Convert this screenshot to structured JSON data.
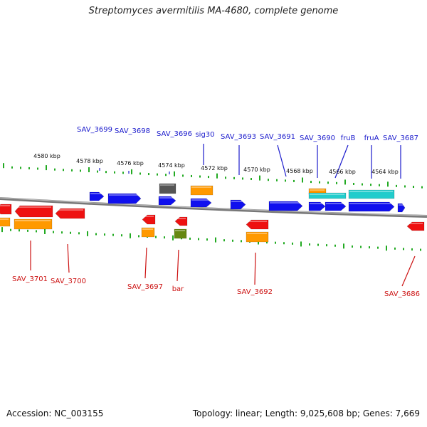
{
  "title": "Streptomyces avermitilis MA-4680, complete genome",
  "footer": {
    "accession": "Accession: NC_003155",
    "topology": "Topology: linear; Length: 9,025,608 bp; Genes: 7,669"
  },
  "colors": {
    "top_label": "#1a1acc",
    "bottom_label": "#cc1111",
    "ruler_tick": "#22aa22",
    "backbone": "#888888",
    "blue": "#1010ee",
    "red": "#ee1111",
    "orange": "#ff9900",
    "cyan": "#22cccc",
    "gray": "#555555",
    "olive": "#668811"
  },
  "top_ruler_labels": [
    "4580 kbp",
    "4578 kbp",
    "4576 kbp",
    "4574 kbp",
    "4572 kbp",
    "4570 kbp",
    "4568 kbp",
    "4566 kbp",
    "4564 kbp"
  ],
  "top_gene_labels": [
    "SAV_3699",
    "SAV_3698",
    "SAV_3696",
    "sig30",
    "SAV_3693",
    "SAV_3691",
    "SAV_3690",
    "fruB",
    "fruA",
    "SAV_3687"
  ],
  "bottom_gene_labels": [
    "SAV_3701",
    "SAV_3700",
    "SAV_3697",
    "bar",
    "SAV_3692",
    "SAV_3686"
  ]
}
